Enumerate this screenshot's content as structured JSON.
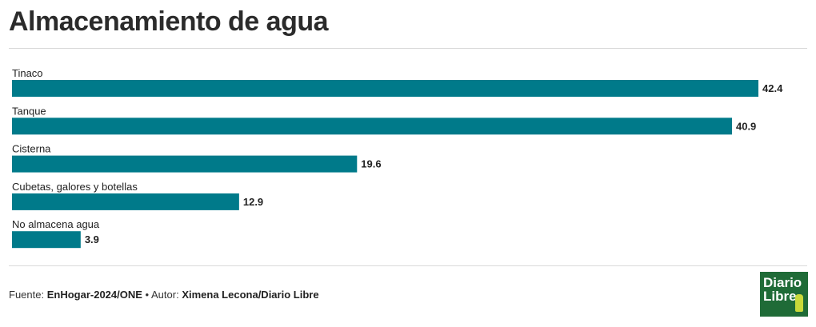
{
  "title": "Almacenamiento de agua",
  "chart_data": {
    "type": "bar",
    "orientation": "horizontal",
    "categories": [
      "Tinaco",
      "Tanque",
      "Cisterna",
      "Cubetas, galores y botellas",
      "No almacena agua"
    ],
    "values": [
      42.4,
      40.9,
      19.6,
      12.9,
      3.9
    ],
    "value_labels": [
      "42.4",
      "40.9",
      "19.6",
      "12.9",
      "3.9"
    ],
    "xlim": [
      0,
      42.4
    ],
    "grid": false,
    "legend": "none",
    "bar_color": "#007a8a"
  },
  "footer": {
    "source_label": "Fuente:",
    "source": "EnHogar-2024/ONE",
    "separator": "•",
    "author_label": "Autor:",
    "author": "Ximena Lecona/Diario Libre"
  },
  "logo": {
    "line1": "Diario",
    "line2": "Libre"
  }
}
